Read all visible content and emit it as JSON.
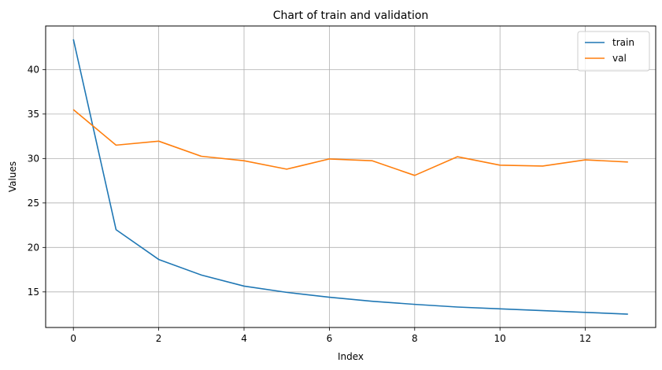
{
  "chart_data": {
    "type": "line",
    "title": "Chart of train and validation",
    "xlabel": "Index",
    "ylabel": "Values",
    "x": [
      0,
      1,
      2,
      3,
      4,
      5,
      6,
      7,
      8,
      9,
      10,
      11,
      12,
      13
    ],
    "xticks": [
      0,
      2,
      4,
      6,
      8,
      10,
      12
    ],
    "yticks": [
      15,
      20,
      25,
      30,
      35,
      40
    ],
    "xlim": [
      -0.65,
      13.65
    ],
    "ylim": [
      11.0,
      44.9
    ],
    "grid": true,
    "legend_position": "top-right",
    "series": [
      {
        "name": "train",
        "color": "#1f77b4",
        "values": [
          43.4,
          22.0,
          18.65,
          16.9,
          15.65,
          14.95,
          14.4,
          13.95,
          13.6,
          13.3,
          13.1,
          12.9,
          12.7,
          12.5
        ]
      },
      {
        "name": "val",
        "color": "#ff7f0e",
        "values": [
          35.5,
          31.5,
          31.95,
          30.25,
          29.75,
          28.8,
          29.95,
          29.75,
          28.1,
          30.2,
          29.25,
          29.15,
          29.85,
          29.6
        ]
      }
    ]
  }
}
